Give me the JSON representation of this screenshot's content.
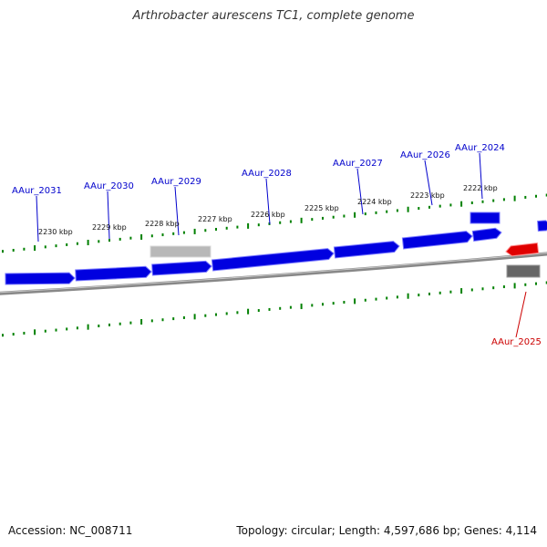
{
  "title": "Arthrobacter aurescens TC1, complete genome",
  "footer": {
    "accession": "Accession: NC_008711",
    "stats": "Topology: circular; Length: 4,597,686 bp; Genes: 4,114"
  },
  "colors": {
    "forward_gene": "#0000e0",
    "forward_gene_edge": "#7a7aff",
    "reverse_gene": "#e00000",
    "reverse_gene_edge": "#ff8a8a",
    "pseudo_gene": "#b8b8b8",
    "reverse_pseudo_gene": "#666666",
    "backbone": "#888888",
    "ticks": "#008000",
    "forward_label": "#0000cc",
    "reverse_label": "#cc0000"
  },
  "tick_labels": [
    "2230 kbp",
    "2229 kbp",
    "2228 kbp",
    "2227 kbp",
    "2226 kbp",
    "2225 kbp",
    "2224 kbp",
    "2223 kbp",
    "2222 kbp"
  ],
  "gene_labels": [
    {
      "name": "AAur_2031",
      "strand": "forward"
    },
    {
      "name": "AAur_2030",
      "strand": "forward"
    },
    {
      "name": "AAur_2029",
      "strand": "forward"
    },
    {
      "name": "AAur_2028",
      "strand": "forward"
    },
    {
      "name": "AAur_2027",
      "strand": "forward"
    },
    {
      "name": "AAur_2026",
      "strand": "forward"
    },
    {
      "name": "AAur_2024",
      "strand": "forward"
    },
    {
      "name": "AAur_2025",
      "strand": "reverse"
    }
  ]
}
